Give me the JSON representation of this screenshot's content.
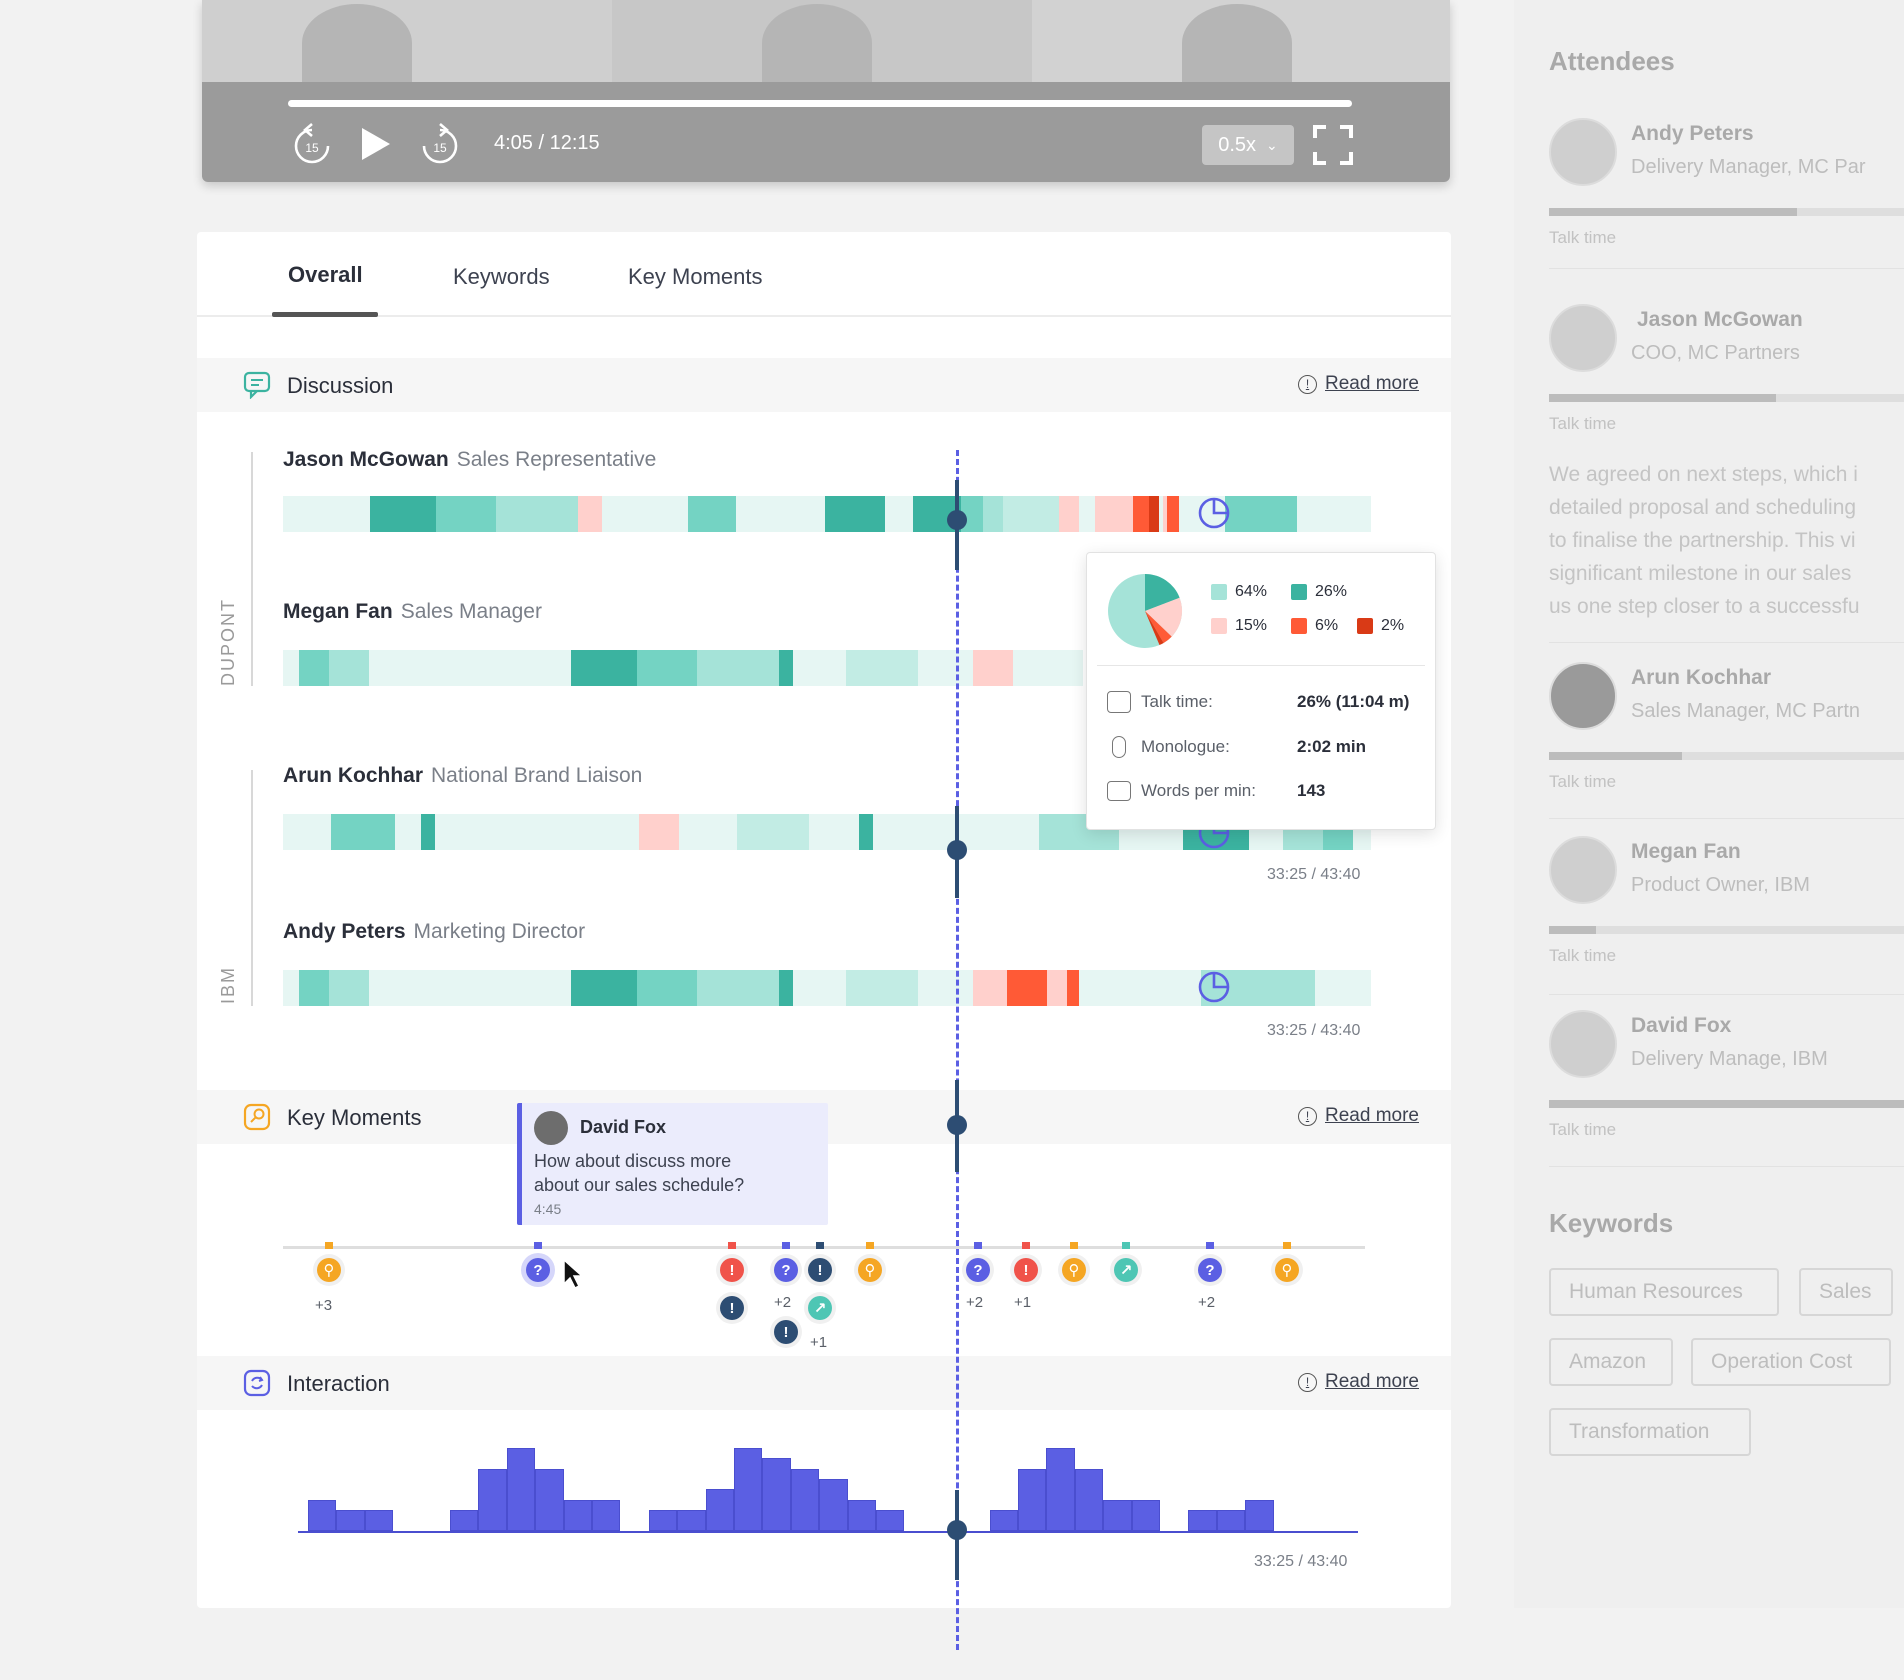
{
  "player": {
    "time": "4:05 / 12:15",
    "speed": "0.5x",
    "progress": 1.0,
    "skip_back_label": "15",
    "skip_forward_label": "15"
  },
  "tabs": [
    "Overall",
    "Keywords",
    "Key Moments"
  ],
  "discussion": {
    "title": "Discussion",
    "read_more": "Read more",
    "groups": [
      "DUPONT",
      "IBM"
    ],
    "people": [
      {
        "name": "Jason McGowan",
        "role": "Sales Representative"
      },
      {
        "name": "Megan Fan",
        "role": "Sales Manager"
      },
      {
        "name": "Arun Kochhar",
        "role": "National Brand Liaison"
      },
      {
        "name": "Andy Peters",
        "role": "Marketing Director"
      }
    ],
    "timestamp": "33:25 / 43:40"
  },
  "popup": {
    "legend": [
      "64%",
      "26%",
      "15%",
      "6%",
      "2%"
    ],
    "rows": [
      {
        "label": "Talk time:",
        "value": "26% (11:04 m)"
      },
      {
        "label": "Monologue:",
        "value": "2:02 min"
      },
      {
        "label": "Words per min:",
        "value": "143"
      }
    ]
  },
  "key_moments": {
    "title": "Key Moments",
    "read_more": "Read more",
    "comment": {
      "author": "David Fox",
      "text_line1": "How about discuss more",
      "text_line2": "about our sales schedule?",
      "time": "4:45"
    },
    "counts": [
      "+3",
      "+2",
      "+1",
      "+2",
      "+1",
      "+2"
    ]
  },
  "interaction": {
    "title": "Interaction",
    "read_more": "Read more",
    "timestamp": "33:25 / 43:40"
  },
  "chart_data": {
    "type": "bar",
    "title": "",
    "values": [
      3,
      2,
      2,
      0,
      0,
      2,
      6,
      8,
      6,
      3,
      3,
      0,
      2,
      2,
      4,
      8,
      7,
      6,
      5,
      3,
      2,
      0,
      0,
      0,
      2,
      6,
      8,
      6,
      3,
      3,
      0,
      2,
      2,
      3
    ]
  },
  "sidebar": {
    "attendees_title": "Attendees",
    "talk_time_label": "Talk time",
    "attendees": [
      {
        "name": "Andy Peters",
        "role": "Delivery Manager, MC Par",
        "talk": 0.69
      },
      {
        "name": "Jason McGowan",
        "role": "COO, MC Partners",
        "talk": 0.63
      },
      {
        "name": "Arun Kochhar",
        "role": "Sales Manager, MC Partn",
        "talk": 0.37
      },
      {
        "name": "Megan Fan",
        "role": "Product Owner, IBM",
        "talk": 0.13
      },
      {
        "name": "David Fox",
        "role": "Delivery Manage, IBM",
        "talk": 1.0
      }
    ],
    "summary": [
      "We agreed on next steps, which i",
      "detailed proposal and scheduling",
      "to finalise the partnership. This vi",
      "significant milestone in our sales",
      "us one step closer to a successfu"
    ],
    "keywords_title": "Keywords",
    "keywords": [
      "Human Resources",
      "Sales",
      "Amazon",
      "Operation Cost",
      "Transformation"
    ]
  },
  "colors": {
    "accent": "#5b5fe3",
    "teal_light": "#a5e3d8",
    "teal": "#3bb3a0",
    "salmon": "#ffd0cc",
    "orange": "#ff5a36",
    "red": "#d93a16"
  }
}
